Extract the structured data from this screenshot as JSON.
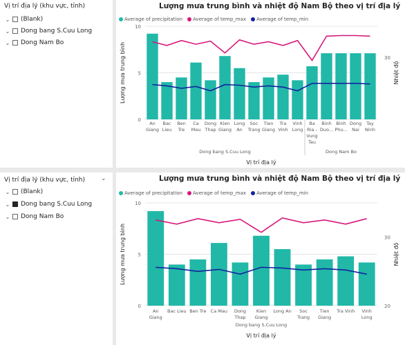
{
  "colors": {
    "precip": "#21b8a8",
    "temp_max": "#d6177c",
    "temp_min": "#12239e"
  },
  "icons": {
    "expand": "chevron-down-icon",
    "collapse": "chevron-up-icon",
    "checkbox": "checkbox-icon"
  },
  "slicer1": {
    "title": "Vị trí địa lý (khu vực, tỉnh)",
    "items": [
      {
        "label": "(Blank)",
        "checked": false
      },
      {
        "label": "Dong bang S.Cuu Long",
        "checked": false
      },
      {
        "label": "Dong Nam Bo",
        "checked": false
      }
    ]
  },
  "slicer2": {
    "title": "Vị trí địa lý (khu vực, tỉnh)",
    "items": [
      {
        "label": "(Blank)",
        "checked": false
      },
      {
        "label": "Dong bang S.Cuu Long",
        "checked": true
      },
      {
        "label": "Dong Nam Bo",
        "checked": false
      }
    ]
  },
  "chart_data": [
    {
      "type": "bar",
      "title": "Lượng mưa trung bình và nhiệt độ Nam Bộ theo vị trí địa lý",
      "legend": [
        "Average of precipitation",
        "Average of temp_max",
        "Average of temp_min"
      ],
      "legend_position": "top-left",
      "xlabel": "Vị trí địa lý",
      "ylabel": "Lượng mưa trung bình",
      "y2label": "Nhiệt độ",
      "ylim": [
        0,
        10
      ],
      "yticks": [
        "0",
        "5",
        "10"
      ],
      "y2lim": [
        20,
        35
      ],
      "y2ticks": [
        "30"
      ],
      "categories": [
        [
          "An",
          "Giang"
        ],
        [
          "Bac",
          "Lieu"
        ],
        [
          "Ben",
          "Tre"
        ],
        [
          "Ca",
          "Mau"
        ],
        [
          "Dong",
          "Thap"
        ],
        [
          "Kien",
          "Giang"
        ],
        [
          "Long",
          "An"
        ],
        [
          "Soc",
          "Trang"
        ],
        [
          "Tien",
          "Giang"
        ],
        [
          "Tra",
          "Vinh"
        ],
        [
          "Vinh",
          "Long"
        ],
        [
          "Ba",
          "Ria -",
          "Vung",
          "Tau"
        ],
        [
          "Binh",
          "Duo..."
        ],
        [
          "Binh",
          "Phu..."
        ],
        [
          "Dong",
          "Nai"
        ],
        [
          "Tay",
          "Ninh"
        ]
      ],
      "groups": [
        {
          "label": "Dong bang S.Cuu Long",
          "start": 0,
          "end": 10
        },
        {
          "label": "Dong Nam Bo",
          "start": 11,
          "end": 15
        }
      ],
      "series": [
        {
          "name": "Average of precipitation",
          "kind": "bar",
          "values": [
            9.2,
            4.0,
            4.5,
            6.1,
            4.2,
            6.8,
            5.5,
            4.0,
            4.5,
            4.8,
            4.2,
            5.7,
            7.1,
            7.1,
            7.1,
            7.1
          ]
        },
        {
          "name": "Average of temp_max",
          "kind": "line",
          "axis": "y2",
          "values": [
            32.5,
            31.9,
            32.7,
            32.1,
            32.6,
            30.7,
            32.8,
            32.1,
            32.5,
            31.9,
            32.7,
            29.5,
            33.4,
            33.5,
            33.5,
            33.4
          ]
        },
        {
          "name": "Average of temp_min",
          "kind": "line",
          "axis": "y2",
          "values": [
            25.6,
            25.4,
            25.0,
            25.3,
            24.6,
            25.6,
            25.5,
            25.2,
            25.4,
            25.2,
            24.6,
            25.8,
            25.8,
            25.8,
            25.8,
            25.7
          ]
        }
      ]
    },
    {
      "type": "bar",
      "title": "Lượng mưa trung bình và nhiệt độ Nam Bộ theo vị trí địa lý",
      "legend": [
        "Average of precipitation",
        "Average of temp_max",
        "Average of temp_min"
      ],
      "legend_position": "top-left",
      "xlabel": "Vị trí địa lý",
      "ylabel": "Lượng mưa trung bình",
      "y2label": "Nhiệt độ",
      "ylim": [
        0,
        10
      ],
      "yticks": [
        "0",
        "5",
        "10"
      ],
      "y2lim": [
        20,
        35
      ],
      "y2ticks": [
        "20",
        "30"
      ],
      "categories": [
        [
          "An",
          "Giang"
        ],
        [
          "Bac Lieu"
        ],
        [
          "Ben Tre"
        ],
        [
          "Ca Mau"
        ],
        [
          "Dong",
          "Thap"
        ],
        [
          "Kien",
          "Giang"
        ],
        [
          "Long An"
        ],
        [
          "Soc",
          "Trang"
        ],
        [
          "Tien",
          "Giang"
        ],
        [
          "Tra Vinh"
        ],
        [
          "Vinh",
          "Long"
        ]
      ],
      "groups": [
        {
          "label": "Dong bang S.Cuu Long",
          "start": 0,
          "end": 10
        }
      ],
      "series": [
        {
          "name": "Average of precipitation",
          "kind": "bar",
          "values": [
            9.2,
            4.0,
            4.5,
            6.1,
            4.2,
            6.8,
            5.5,
            4.0,
            4.5,
            4.8,
            4.2
          ]
        },
        {
          "name": "Average of temp_max",
          "kind": "line",
          "axis": "y2",
          "values": [
            32.5,
            31.9,
            32.7,
            32.1,
            32.6,
            30.7,
            32.8,
            32.1,
            32.5,
            31.9,
            32.7
          ]
        },
        {
          "name": "Average of temp_min",
          "kind": "line",
          "axis": "y2",
          "values": [
            25.6,
            25.4,
            25.0,
            25.3,
            24.6,
            25.6,
            25.5,
            25.2,
            25.4,
            25.2,
            24.6
          ]
        }
      ]
    }
  ]
}
